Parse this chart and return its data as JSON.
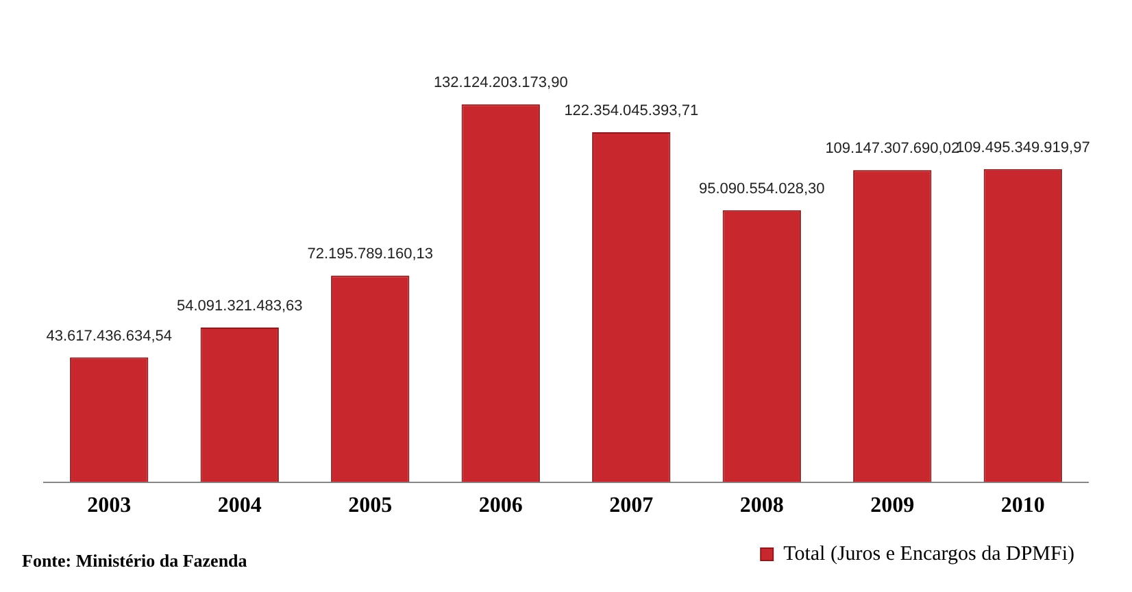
{
  "chart_data": {
    "type": "bar",
    "categories": [
      "2003",
      "2004",
      "2005",
      "2006",
      "2007",
      "2008",
      "2009",
      "2010"
    ],
    "series": [
      {
        "name": "Total (Juros e Encargos da DPMFi)",
        "color": "#c8282d",
        "values": [
          43617436634.54,
          54091321483.63,
          72195789160.13,
          132124203173.9,
          122354045393.71,
          95090554028.3,
          109147307690.02,
          109495349919.97
        ],
        "value_labels": [
          "43.617.436.634,54",
          "54.091.321.483,63",
          "72.195.789.160,13",
          "132.124.203.173,90",
          "122.354.045.393,71",
          "95.090.554.028,30",
          "109.147.307.690,02",
          "109.495.349.919,97"
        ]
      }
    ],
    "grid": false,
    "legend": "bottom right",
    "annotations": [
      "Fonte: Ministério da Fazenda"
    ]
  }
}
